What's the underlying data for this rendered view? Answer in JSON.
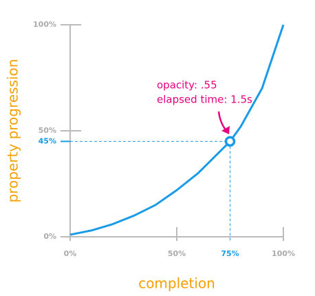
{
  "chart_data": {
    "type": "line",
    "xlabel": "completion",
    "ylabel": "property progression",
    "x": [
      0,
      10,
      20,
      30,
      40,
      50,
      60,
      70,
      75,
      80,
      90,
      100
    ],
    "values": [
      1,
      3,
      6,
      10,
      15,
      22,
      30,
      40,
      45,
      52,
      70,
      100
    ],
    "color": "#1a9be8",
    "xlim": [
      0,
      100
    ],
    "ylim": [
      0,
      100
    ],
    "xticks": [
      {
        "value": 0,
        "label": "0%"
      },
      {
        "value": 50,
        "label": "50%"
      },
      {
        "value": 100,
        "label": "100%"
      }
    ],
    "yticks": [
      {
        "value": 0,
        "label": "0%"
      },
      {
        "value": 50,
        "label": "50%"
      },
      {
        "value": 100,
        "label": "100%"
      }
    ],
    "highlight": {
      "x": {
        "value": 75,
        "label": "75%"
      },
      "y": {
        "value": 45,
        "label": "45%"
      }
    },
    "annotations": [
      "opacity: .55",
      "elapsed time: 1.5s"
    ],
    "annotation_color": "#e6007e",
    "label_color": "#f5a000",
    "axis_color": "#bbb"
  }
}
